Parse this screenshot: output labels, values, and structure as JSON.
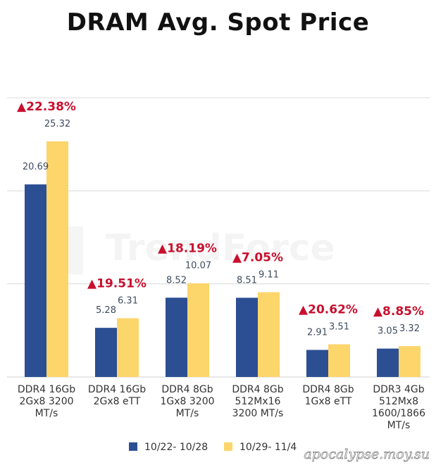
{
  "chart_data": {
    "type": "bar",
    "title": "DRAM Avg. Spot Price",
    "categories": [
      [
        "DDR4 16Gb",
        "2Gx8 3200",
        "MT/s"
      ],
      [
        "DDR4 16Gb",
        "2Gx8 eTT"
      ],
      [
        "DDR4 8Gb",
        "1Gx8 3200",
        "MT/s"
      ],
      [
        "DDR4 8Gb",
        "512Mx16",
        "3200 MT/s"
      ],
      [
        "DDR4 8Gb",
        "1Gx8 eTT"
      ],
      [
        "DDR3 4Gb",
        "512Mx8",
        "1600/1866",
        "MT/s"
      ]
    ],
    "series": [
      {
        "name": "10/22- 10/28",
        "color": "#2c4f93",
        "values": [
          20.69,
          5.28,
          8.52,
          8.51,
          2.91,
          3.05
        ]
      },
      {
        "name": "10/29- 11/4",
        "color": "#fcd56b",
        "values": [
          25.32,
          6.31,
          10.07,
          9.11,
          3.51,
          3.32
        ]
      }
    ],
    "changes": [
      "▲22.38%",
      "▲19.51%",
      "▲18.19%",
      "▲7.05%",
      "▲20.62%",
      "▲8.85%"
    ],
    "ylim": [
      0,
      30
    ],
    "gridlines": [
      0,
      10,
      20,
      30
    ],
    "legend_position": "bottom",
    "watermark": "TrendForce",
    "xlabel": "",
    "ylabel": ""
  },
  "footer": {
    "watermark": "apocalypse.moy.su"
  },
  "colors": {
    "change": "#c8102e",
    "grid": "#d9d9d9"
  }
}
